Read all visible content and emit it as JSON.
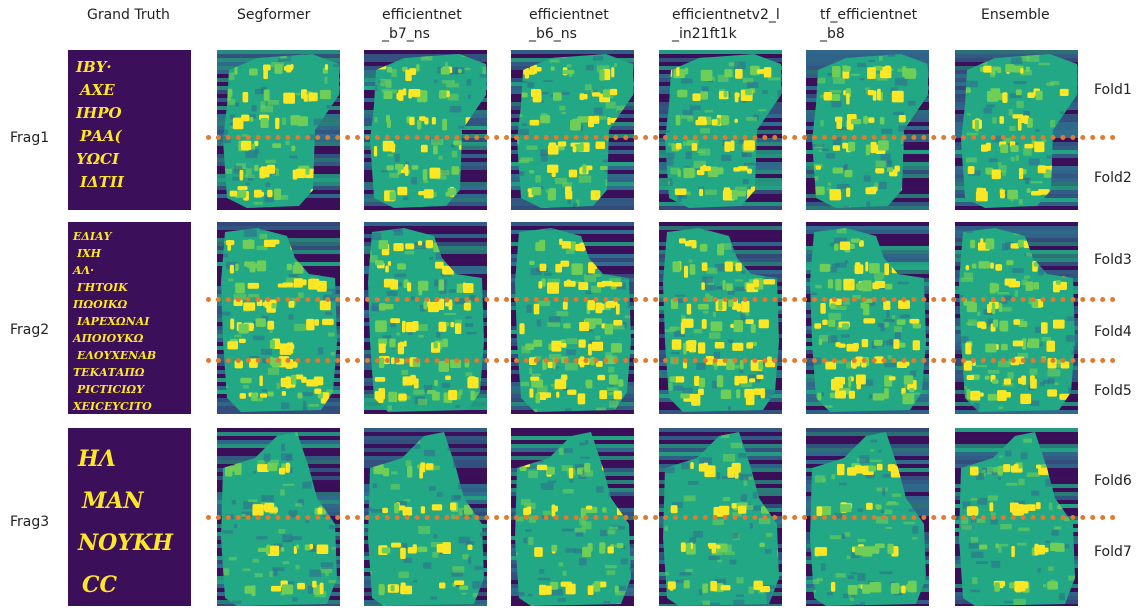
{
  "column_headers": [
    "Grand Truth",
    "Segformer",
    "efficientnet\n_b7_ns",
    "efficientnet\n_b6_ns",
    "efficientnetv2_l\n_in21ft1k",
    "tf_efficientnet\n_b8",
    "Ensemble"
  ],
  "rows": [
    {
      "label": "Frag1",
      "folds": [
        "Fold1",
        "Fold2"
      ],
      "gt_lines": [
        "ΙΒΥ·",
        "ΑΧΕ",
        "ΙΗΡΟ",
        "ΡΑΑ(",
        "ΥΩCΙ",
        "ΙΔΤΙΙ"
      ]
    },
    {
      "label": "Frag2",
      "folds": [
        "Fold3",
        "Fold4",
        "Fold5"
      ],
      "gt_lines": [
        "ΕΔΙΑΥ",
        "ΙΧΗ",
        "ΑΛ·",
        "ΓΗΤΟΙΚ",
        "ΠΩΟΙΚΩ",
        "ΙΑΡΕΧΩΝΑΙ",
        "ΑΠΟΙΟΥΚΩ",
        "ΕΛΟΥΧΕΝΑΒ",
        "ΤΕΚΑΤΑΠΩ",
        "ΡΙCΤΙCΙΩΥ",
        "ΧΕΙCΕΥCΙΤΟ"
      ]
    },
    {
      "label": "Frag3",
      "folds": [
        "Fold6",
        "Fold7"
      ],
      "gt_lines": [
        "ΗΛ",
        "ΜΑΝ",
        "ΝΟΥΚΗ",
        "CC"
      ]
    }
  ],
  "colors": {
    "background_dark": "#3b0f5a",
    "blue": "#2f6f8f",
    "teal": "#22a884",
    "green": "#6ece58",
    "yellow": "#fde725",
    "fold_line": "#e07b2f"
  }
}
